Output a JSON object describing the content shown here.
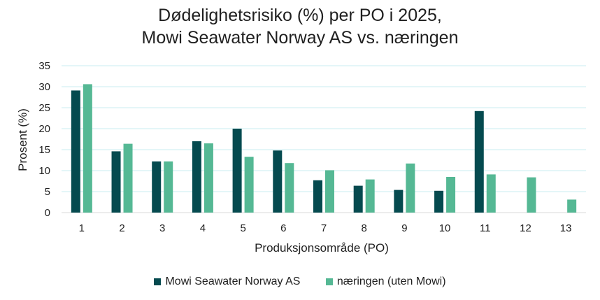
{
  "chart_data": {
    "type": "bar",
    "title": [
      "Dødelighetsrisiko (%) per PO i 2025,",
      "Mowi Seawater Norway AS vs. næringen"
    ],
    "xlabel": "Produksjonsområde (PO)",
    "ylabel": "Prosent (%)",
    "categories": [
      "1",
      "2",
      "3",
      "4",
      "5",
      "6",
      "7",
      "8",
      "9",
      "10",
      "11",
      "12",
      "13"
    ],
    "ylim": [
      0,
      35
    ],
    "yticks": [
      0,
      5,
      10,
      15,
      20,
      25,
      30,
      35
    ],
    "grid": true,
    "legend_position": "bottom",
    "series": [
      {
        "name": "Mowi Seawater Norway AS",
        "color": "#054a4f",
        "values": [
          29.1,
          14.6,
          12.2,
          17.0,
          20.0,
          14.8,
          7.7,
          6.4,
          5.4,
          5.2,
          24.2,
          null,
          null
        ]
      },
      {
        "name": "næringen (uten Mowi)",
        "color": "#55b894",
        "values": [
          30.6,
          16.4,
          12.2,
          16.5,
          13.3,
          11.8,
          10.1,
          7.9,
          11.7,
          8.5,
          9.1,
          8.4,
          3.1
        ]
      }
    ]
  }
}
